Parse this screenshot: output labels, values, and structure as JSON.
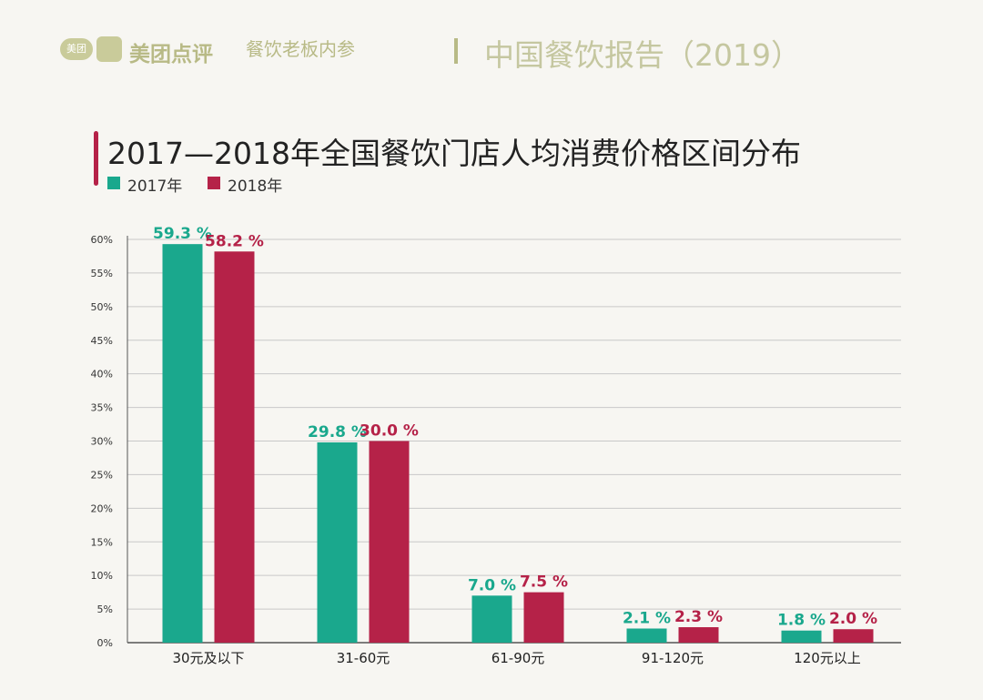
{
  "header": {
    "badge_text": "美团",
    "brand_name": "美团点评",
    "brand_sub": "餐饮老板内参",
    "report_title": "中国餐饮报告（2019）"
  },
  "colors": {
    "series_2017": "#1aa88d",
    "series_2018": "#b52248",
    "grid": "#c8c8c8",
    "axis": "#555555"
  },
  "chart_data": {
    "type": "bar",
    "title": "2017—2018年全国餐饮门店人均消费价格区间分布",
    "categories": [
      "30元及以下",
      "31-60元",
      "61-90元",
      "91-120元",
      "120元以上"
    ],
    "series": [
      {
        "name": "2017年",
        "values": [
          59.3,
          29.8,
          7.0,
          2.1,
          1.8
        ],
        "labels": [
          "59.3 %",
          "29.8 %",
          "7.0 %",
          "2.1 %",
          "1.8 %"
        ]
      },
      {
        "name": "2018年",
        "values": [
          58.2,
          30.0,
          7.5,
          2.3,
          2.0
        ],
        "labels": [
          "58.2 %",
          "30.0 %",
          "7.5 %",
          "2.3 %",
          "2.0 %"
        ]
      }
    ],
    "ylim": [
      0,
      60
    ],
    "yticks": [
      "0%",
      "5%",
      "10%",
      "15%",
      "20%",
      "25%",
      "30%",
      "35%",
      "40%",
      "45%",
      "50%",
      "55%",
      "60%"
    ],
    "xlabel": "",
    "ylabel": "",
    "grid": true,
    "legend": "top-left"
  }
}
